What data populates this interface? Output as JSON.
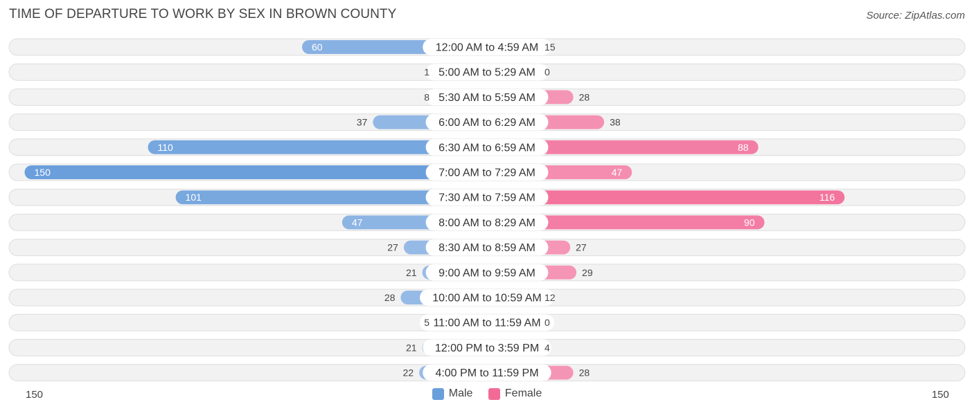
{
  "title": "TIME OF DEPARTURE TO WORK BY SEX IN BROWN COUNTY",
  "source": "Source: ZipAtlas.com",
  "axis": {
    "left_label": "150",
    "right_label": "150"
  },
  "legend": {
    "male_label": "Male",
    "female_label": "Female"
  },
  "colors": {
    "male_strong": "#6a9fdc",
    "male_light": "#a9c6ea",
    "female_strong": "#f26b97",
    "female_light": "#f6a8c3",
    "row_bg": "#f2f2f2",
    "row_border": "#dddddd"
  },
  "chart_data": {
    "type": "bar",
    "orientation": "horizontal-diverging",
    "xlim": [
      -150,
      150
    ],
    "categories": [
      "12:00 AM to 4:59 AM",
      "5:00 AM to 5:29 AM",
      "5:30 AM to 5:59 AM",
      "6:00 AM to 6:29 AM",
      "6:30 AM to 6:59 AM",
      "7:00 AM to 7:29 AM",
      "7:30 AM to 7:59 AM",
      "8:00 AM to 8:29 AM",
      "8:30 AM to 8:59 AM",
      "9:00 AM to 9:59 AM",
      "10:00 AM to 10:59 AM",
      "11:00 AM to 11:59 AM",
      "12:00 PM to 3:59 PM",
      "4:00 PM to 11:59 PM"
    ],
    "series": [
      {
        "name": "Male",
        "values": [
          60,
          1,
          8,
          37,
          110,
          150,
          101,
          47,
          27,
          21,
          28,
          5,
          21,
          22
        ]
      },
      {
        "name": "Female",
        "values": [
          15,
          0,
          28,
          38,
          88,
          47,
          116,
          90,
          27,
          29,
          12,
          0,
          4,
          28
        ]
      }
    ],
    "legend_position": "bottom-center"
  }
}
